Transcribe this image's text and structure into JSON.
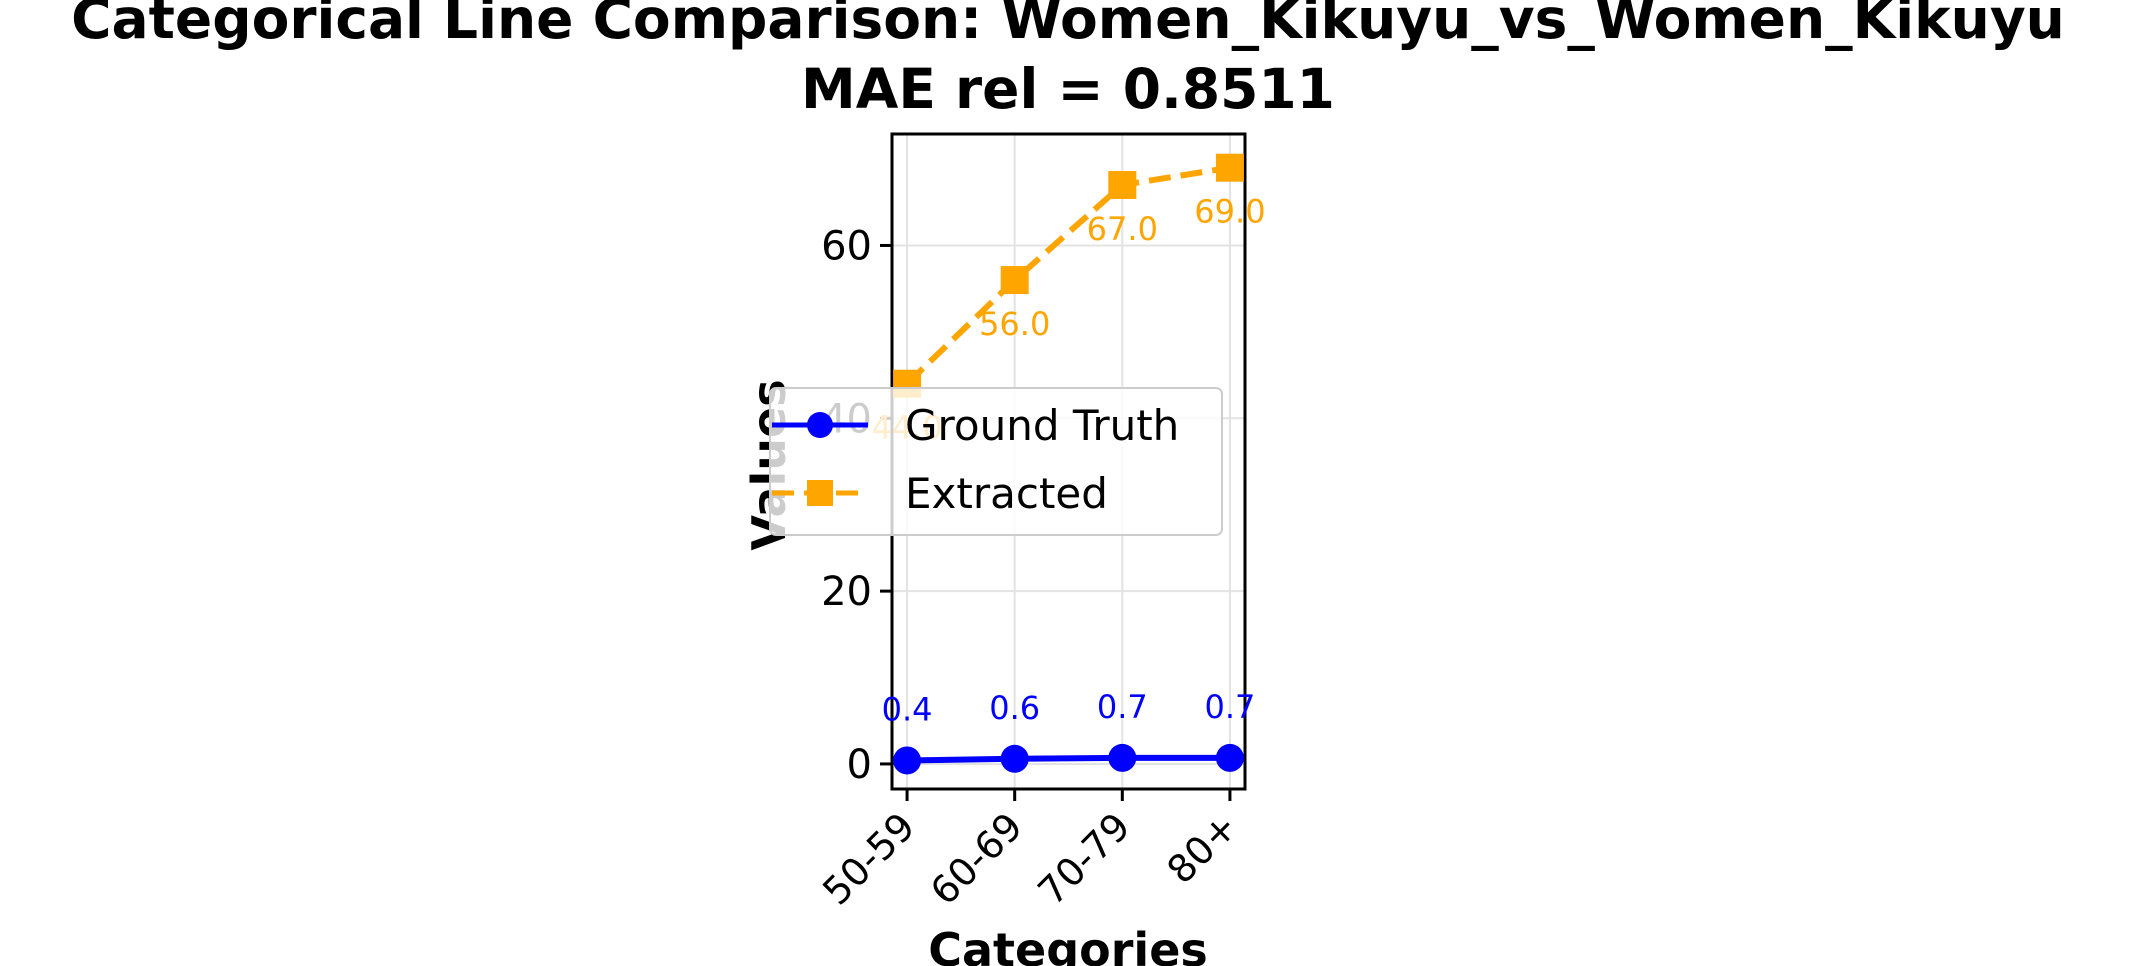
{
  "chart_data": {
    "type": "line",
    "title": "Categorical Line Comparison: Women_Kikuyu_vs_Women_Kikuyu",
    "subtitle": "MAE rel = 0.8511",
    "xlabel": "Categories",
    "ylabel": "Values",
    "categories": [
      "50-59",
      "60-69",
      "70-79",
      "80+"
    ],
    "ylim": [
      -2.9,
      72.9
    ],
    "yticks": [
      0,
      20,
      40,
      60
    ],
    "grid": true,
    "legend_position": "center",
    "series": [
      {
        "name": "Ground Truth",
        "values": [
          0.4,
          0.6,
          0.7,
          0.7
        ],
        "labels": [
          "0.4",
          "0.6",
          "0.7",
          "0.7"
        ],
        "color": "#0000ff",
        "marker": "circle",
        "linestyle": "solid"
      },
      {
        "name": "Extracted",
        "values": [
          44.0,
          56.0,
          67.0,
          69.0
        ],
        "labels": [
          "44.0",
          "56.0",
          "67.0",
          "69.0"
        ],
        "color": "#ffa500",
        "marker": "square",
        "linestyle": "dashed"
      }
    ]
  }
}
